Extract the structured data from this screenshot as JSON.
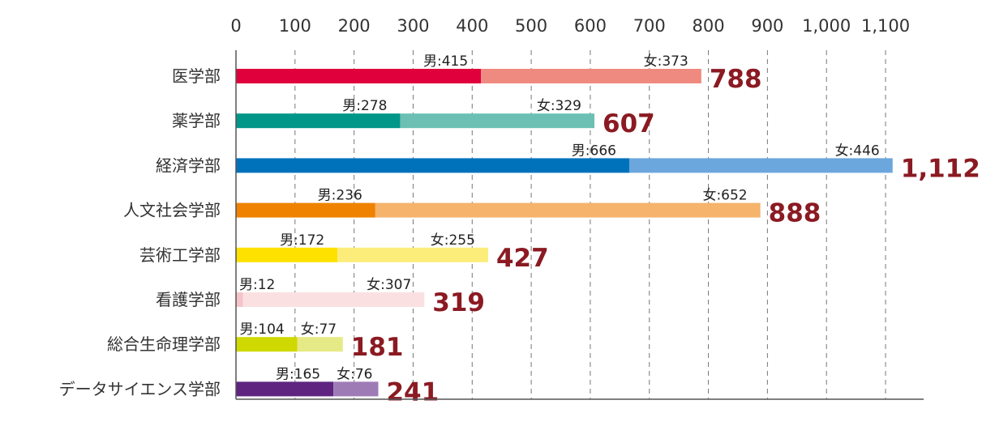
{
  "chart_data": {
    "type": "bar",
    "orientation": "horizontal",
    "stacked": true,
    "xlim": [
      0,
      1150
    ],
    "xticks": [
      0,
      100,
      200,
      300,
      400,
      500,
      600,
      700,
      800,
      900,
      1000,
      1100
    ],
    "xtick_labels": [
      "0",
      "100",
      "200",
      "300",
      "400",
      "500",
      "600",
      "700",
      "800",
      "900",
      "1,000",
      "1,100"
    ],
    "grid": "vertical-dashed",
    "categories": [
      "医学部",
      "薬学部",
      "経済学部",
      "人文社会学部",
      "芸術工学部",
      "看護学部",
      "総合生命理学部",
      "データサイエンス学部"
    ],
    "series": [
      {
        "values": [
          415,
          278,
          666,
          236,
          172,
          12,
          104,
          165
        ],
        "labels": [
          "男:415",
          "男:278",
          "男:666",
          "男:236",
          "男:172",
          "男:12",
          "男:104",
          "男:165"
        ],
        "colors": [
          "#e0003c",
          "#009688",
          "#0072bc",
          "#ef8200",
          "#ffe100",
          "#f4c4c8",
          "#cfd900",
          "#5e2480"
        ]
      },
      {
        "values": [
          373,
          329,
          446,
          652,
          255,
          307,
          77,
          76
        ],
        "labels": [
          "女:373",
          "女:329",
          "女:446",
          "女:652",
          "女:255",
          "女:307",
          "女:77",
          "女:76"
        ],
        "colors": [
          "#ef8a80",
          "#6bbfb3",
          "#6ba6dc",
          "#f5b36c",
          "#fced7a",
          "#fbe0e2",
          "#e6ea86",
          "#9e7bb5"
        ]
      }
    ],
    "totals": [
      788,
      607,
      1112,
      888,
      427,
      319,
      181,
      241
    ],
    "total_labels": [
      "788",
      "607",
      "1,112",
      "888",
      "427",
      "319",
      "181",
      "241"
    ],
    "total_color": "#8b1a22"
  }
}
